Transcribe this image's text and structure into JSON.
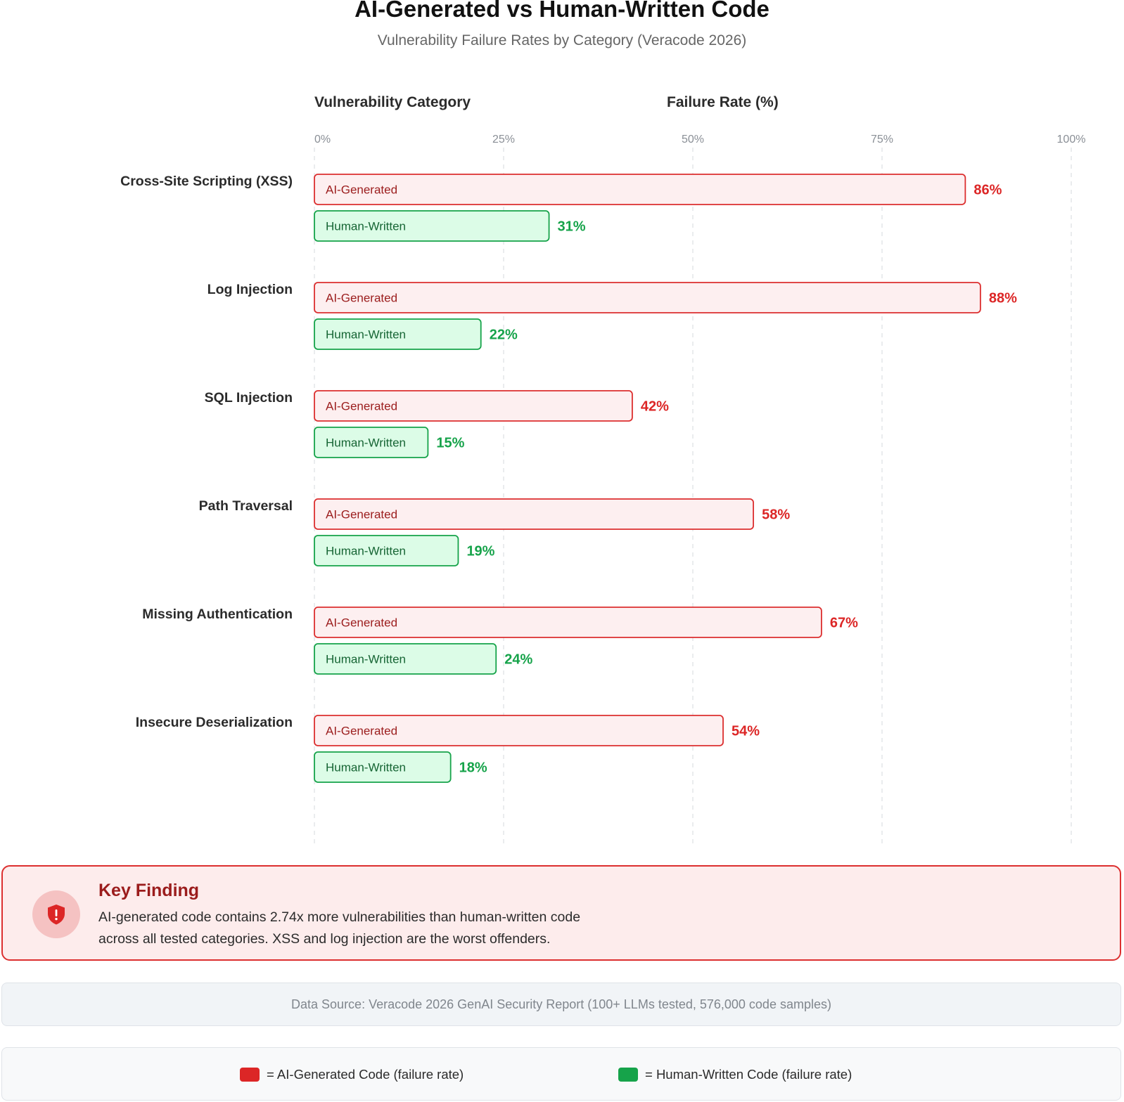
{
  "header": {
    "title": "AI-Generated vs Human-Written Code",
    "subtitle": "Vulnerability Failure Rates by Category (Veracode 2026)",
    "col_category": "Vulnerability Category",
    "col_rate": "Failure Rate (%)"
  },
  "chart_data": {
    "type": "bar",
    "orientation": "horizontal",
    "title": "AI-Generated vs Human-Written Code",
    "subtitle": "Vulnerability Failure Rates by Category (Veracode 2026)",
    "xlabel": "Failure Rate (%)",
    "ylabel": "Vulnerability Category",
    "xlim": [
      0,
      100
    ],
    "ticks": [
      "0%",
      "25%",
      "50%",
      "75%",
      "100%"
    ],
    "grid": true,
    "categories": [
      "Cross-Site Scripting (XSS)",
      "Log Injection",
      "SQL Injection",
      "Path Traversal",
      "Missing Authentication",
      "Insecure Deserialization"
    ],
    "series": [
      {
        "name": "AI-Generated",
        "values": [
          86,
          88,
          42,
          58,
          67,
          54
        ],
        "labels": [
          "86%",
          "88%",
          "42%",
          "58%",
          "67%",
          "54%"
        ],
        "fill": "#fdeff0",
        "stroke": "#dc2f2f",
        "text": "#9b1c1c",
        "value_color": "#dc2626"
      },
      {
        "name": "Human-Written",
        "values": [
          31,
          22,
          15,
          19,
          24,
          18
        ],
        "labels": [
          "31%",
          "22%",
          "15%",
          "19%",
          "24%",
          "18%"
        ],
        "fill": "#dcfce7",
        "stroke": "#16a34a",
        "text": "#166534",
        "value_color": "#16a34a"
      }
    ]
  },
  "key_finding": {
    "icon": "shield-alert-icon",
    "title": "Key Finding",
    "text_line1": "AI-generated code contains 2.74x more vulnerabilities than human-written code",
    "text_line2": "across all tested categories. XSS and log injection are the worst offenders."
  },
  "source": {
    "text": "Data Source: Veracode 2026 GenAI Security Report (100+ LLMs tested, 576,000 code samples)"
  },
  "legend": {
    "ai": {
      "label": "= AI-Generated Code (failure rate)",
      "color": "#dc2626"
    },
    "human": {
      "label": "= Human-Written Code (failure rate)",
      "color": "#16a34a"
    }
  }
}
